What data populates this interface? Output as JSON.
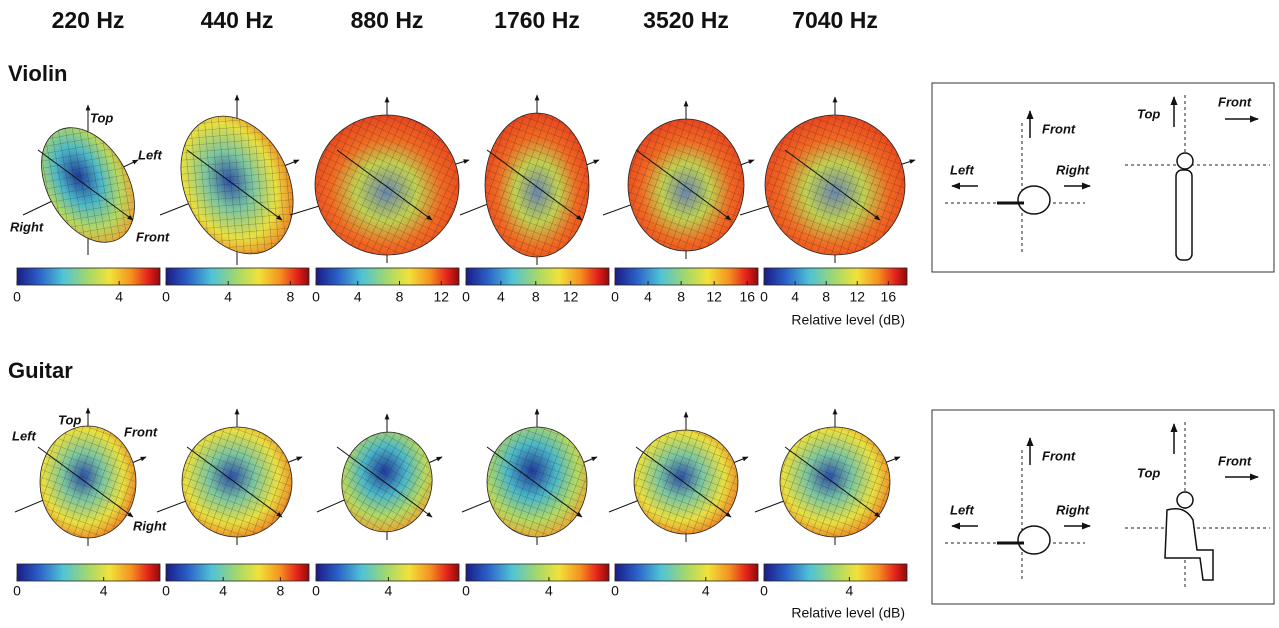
{
  "frequencies": [
    "220 Hz",
    "440 Hz",
    "880 Hz",
    "1760 Hz",
    "3520 Hz",
    "7040 Hz"
  ],
  "panels": [
    {
      "title": "Violin",
      "axis_labels": {
        "top": "Top",
        "left": "Left",
        "right": "Right",
        "front": "Front"
      },
      "colorbars": [
        {
          "lim": [
            0,
            5.6
          ],
          "ticks": [
            0,
            4
          ]
        },
        {
          "lim": [
            0,
            9.2
          ],
          "ticks": [
            0,
            4,
            8
          ]
        },
        {
          "lim": [
            0,
            13.7
          ],
          "ticks": [
            0,
            4,
            8,
            12
          ]
        },
        {
          "lim": [
            0,
            16.4
          ],
          "ticks": [
            0,
            4,
            8,
            12
          ]
        },
        {
          "lim": [
            0,
            17.3
          ],
          "ticks": [
            0,
            4,
            8,
            12,
            16
          ]
        },
        {
          "lim": [
            0,
            18.4
          ],
          "ticks": [
            0,
            4,
            8,
            12,
            16
          ]
        }
      ],
      "colorbar_label": "Relative level (dB)",
      "inset": {
        "front_plan": "Front",
        "left": "Left",
        "right": "Right",
        "top": "Top",
        "front_side": "Front"
      }
    },
    {
      "title": "Guitar",
      "axis_labels": {
        "top": "Top",
        "left": "Left",
        "right": "Right",
        "front": "Front"
      },
      "colorbars": [
        {
          "lim": [
            0,
            6.6
          ],
          "ticks": [
            0,
            4
          ]
        },
        {
          "lim": [
            0,
            10
          ],
          "ticks": [
            0,
            4,
            8
          ]
        },
        {
          "lim": [
            0,
            7.9
          ],
          "ticks": [
            0,
            4
          ]
        },
        {
          "lim": [
            0,
            6.9
          ],
          "ticks": [
            0,
            4
          ]
        },
        {
          "lim": [
            0,
            6.3
          ],
          "ticks": [
            0,
            4
          ]
        },
        {
          "lim": [
            0,
            6.7
          ],
          "ticks": [
            0,
            4
          ]
        }
      ],
      "colorbar_label": "Relative level (dB)",
      "inset": {
        "front_plan": "Front",
        "left": "Left",
        "right": "Right",
        "top": "Top",
        "front_side": "Front"
      }
    }
  ]
}
